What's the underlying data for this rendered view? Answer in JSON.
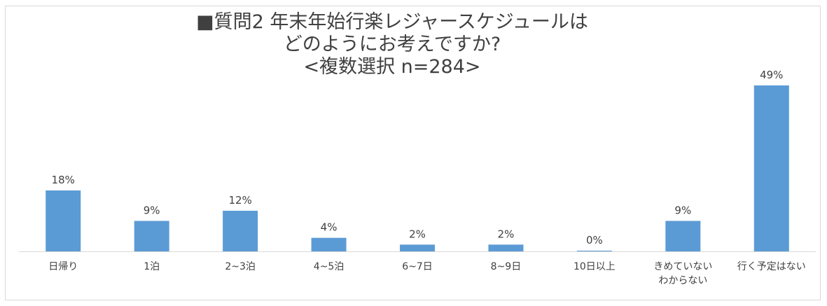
{
  "chart_data": {
    "type": "bar",
    "title_lines": [
      "■質問2 年末年始行楽レジャースケジュールは",
      "どのようにお考えですか?",
      "<複数選択 n=284>"
    ],
    "categories": [
      [
        "日帰り"
      ],
      [
        "1泊"
      ],
      [
        "2~3泊"
      ],
      [
        "4~5泊"
      ],
      [
        "6~7日"
      ],
      [
        "8~9日"
      ],
      [
        "10日以上"
      ],
      [
        "きめていない",
        "わからない"
      ],
      [
        "行く予定はない"
      ]
    ],
    "values": [
      18,
      9,
      12,
      4,
      2,
      2,
      0,
      9,
      49
    ],
    "value_labels": [
      "18%",
      "9%",
      "12%",
      "4%",
      "2%",
      "2%",
      "0%",
      "9%",
      "49%"
    ],
    "unit": "%",
    "ylim": [
      0,
      50
    ],
    "grid": false,
    "legend": "none",
    "bar_color": "#5b9bd5",
    "axis_color": "#d9d9d9",
    "text_color": "#404040"
  }
}
